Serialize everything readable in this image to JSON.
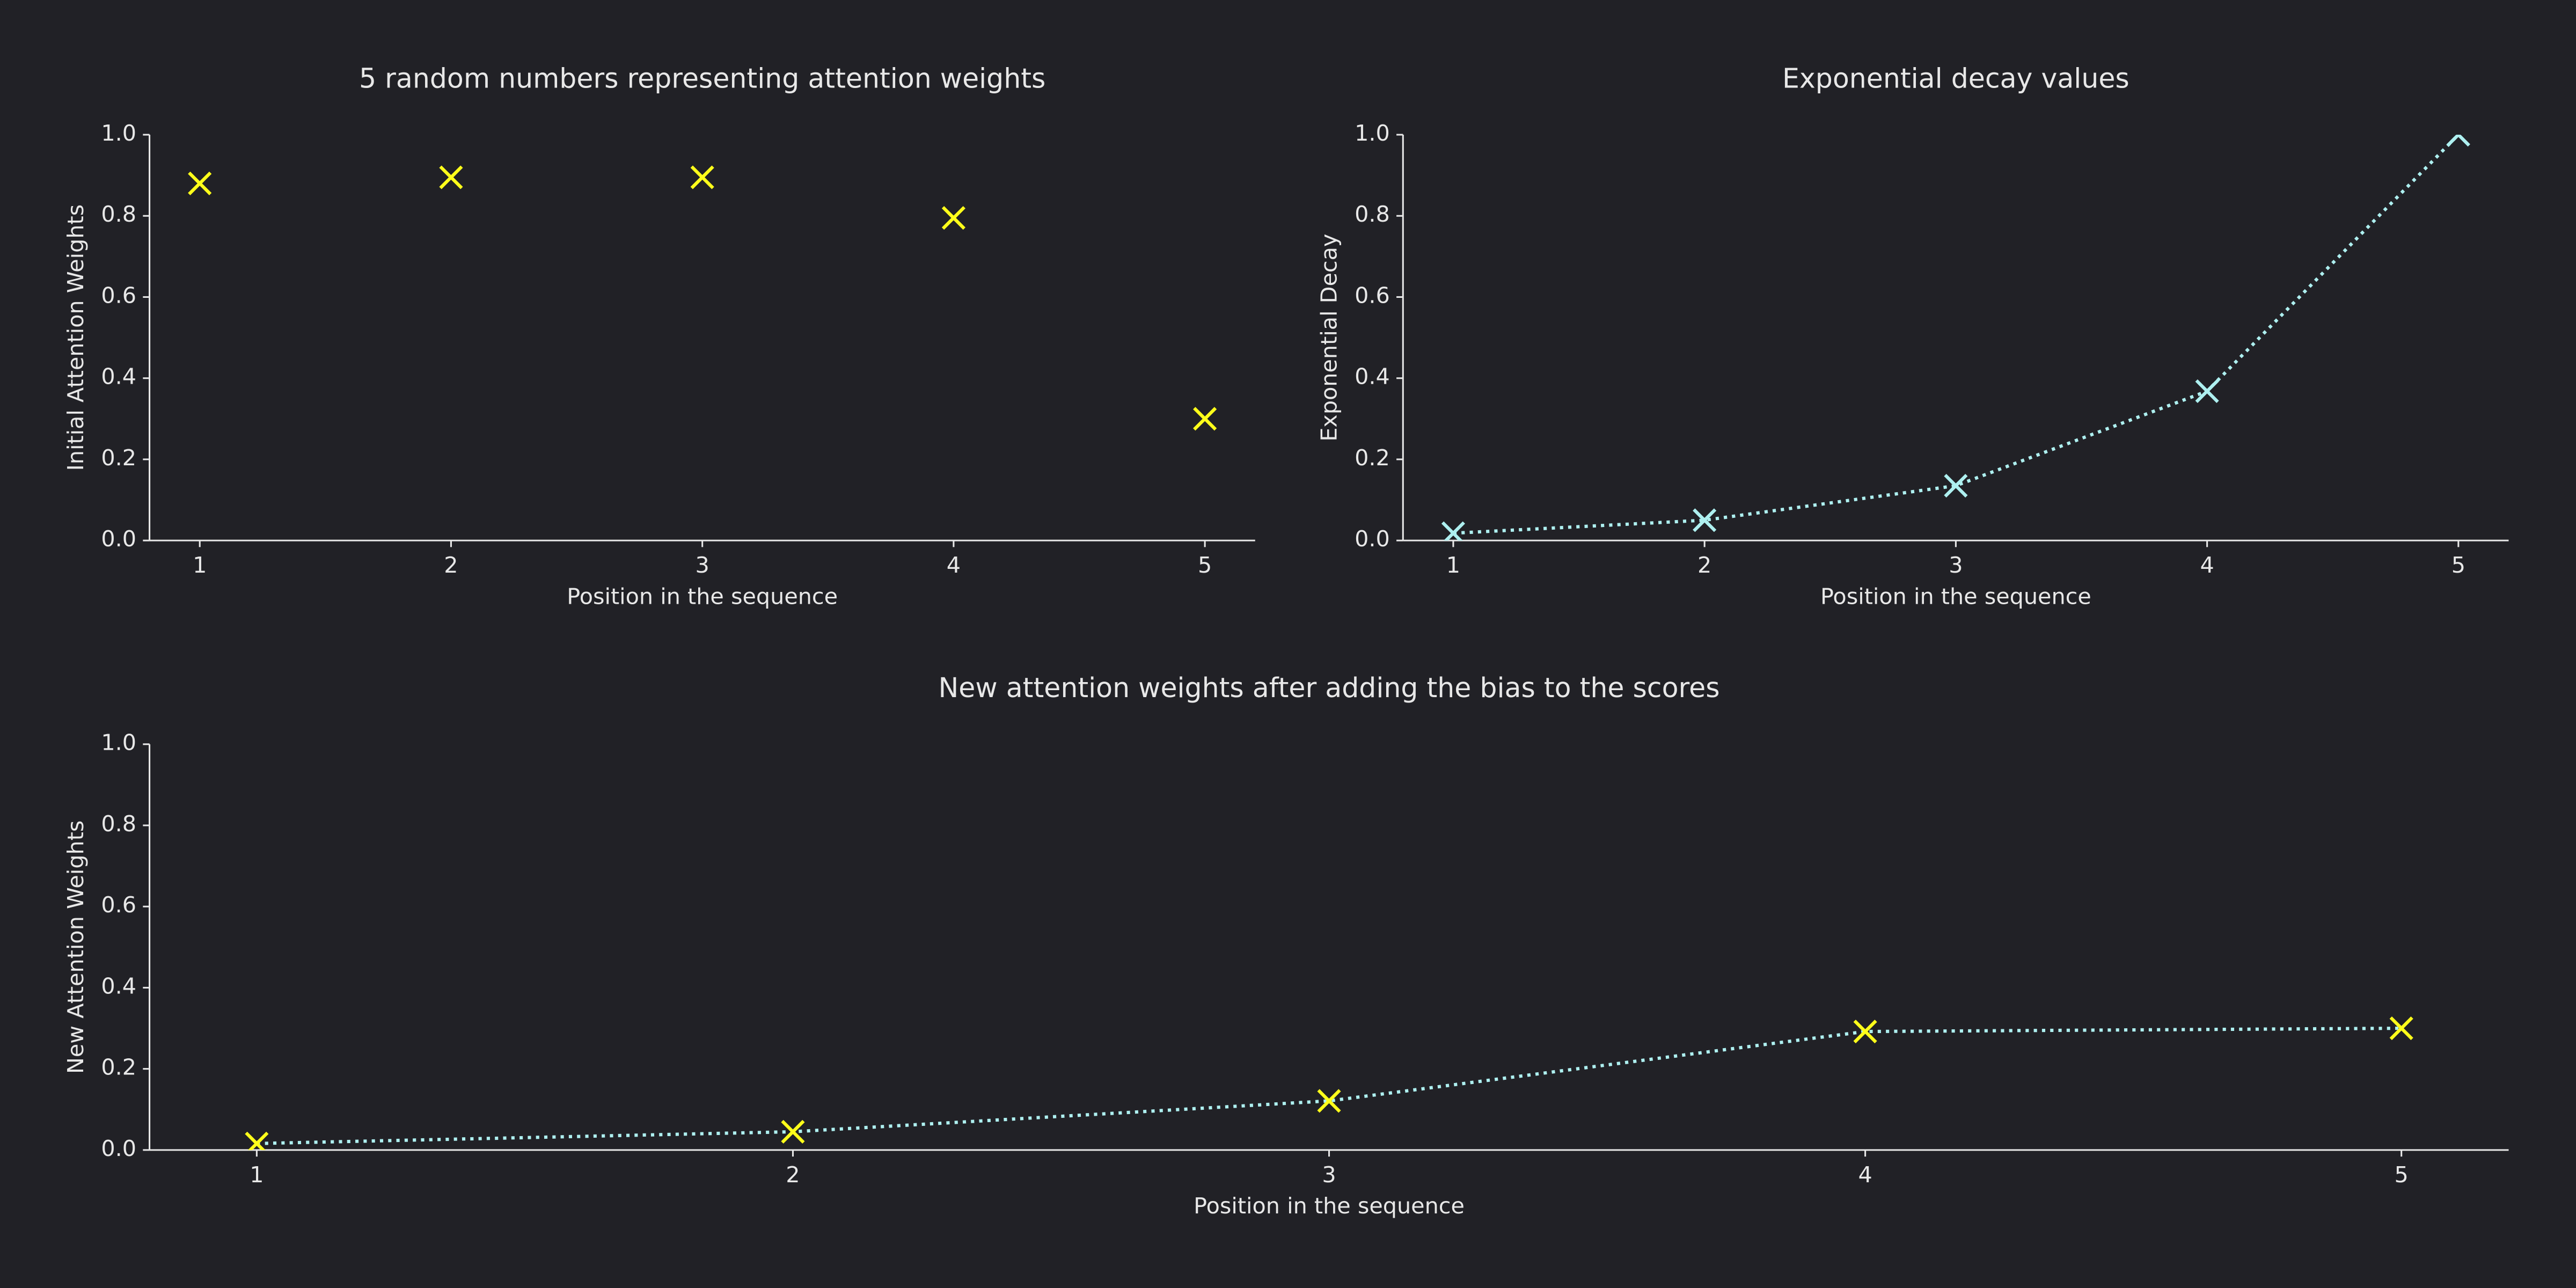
{
  "chart_data": [
    {
      "type": "scatter",
      "title": "5 random numbers representing attention weights",
      "xlabel": "Position in the sequence",
      "ylabel": "Initial Attention Weights",
      "x": [
        1,
        2,
        3,
        4,
        5
      ],
      "values": [
        0.88,
        0.895,
        0.895,
        0.795,
        0.3
      ],
      "color": "#ffff1a",
      "xlim": [
        0.8,
        5.2
      ],
      "xticks": [
        1,
        2,
        3,
        4,
        5
      ],
      "ylim": [
        0,
        1
      ],
      "yticks": [
        {
          "value": 0,
          "label": "0.0"
        },
        {
          "value": 0.2,
          "label": "0.2"
        },
        {
          "value": 0.4,
          "label": "0.4"
        },
        {
          "value": 0.6,
          "label": "0.6"
        },
        {
          "value": 0.8,
          "label": "0.8"
        },
        {
          "value": 1,
          "label": "1.0"
        }
      ]
    },
    {
      "type": "line",
      "title": "Exponential decay values",
      "xlabel": "Position in the sequence",
      "ylabel": "Exponential Decay",
      "x": [
        1,
        2,
        3,
        4,
        5
      ],
      "values": [
        0.018,
        0.05,
        0.135,
        0.368,
        1.0
      ],
      "color": "#aef0f0",
      "line_color": "#aef0f0",
      "xlim": [
        0.8,
        5.2
      ],
      "xticks": [
        1,
        2,
        3,
        4,
        5
      ],
      "ylim": [
        0,
        1
      ],
      "yticks": [
        {
          "value": 0,
          "label": "0.0"
        },
        {
          "value": 0.2,
          "label": "0.2"
        },
        {
          "value": 0.4,
          "label": "0.4"
        },
        {
          "value": 0.6,
          "label": "0.6"
        },
        {
          "value": 0.8,
          "label": "0.8"
        },
        {
          "value": 1,
          "label": "1.0"
        }
      ]
    },
    {
      "type": "line",
      "title": "New attention weights after adding the bias to the scores",
      "xlabel": "Position in the sequence",
      "ylabel": "New Attention Weights",
      "x": [
        1,
        2,
        3,
        4,
        5
      ],
      "values": [
        0.016,
        0.045,
        0.121,
        0.292,
        0.3
      ],
      "color": "#ffff1a",
      "line_color": "#aef0f0",
      "xlim": [
        0.8,
        5.2
      ],
      "xticks": [
        1,
        2,
        3,
        4,
        5
      ],
      "ylim": [
        0,
        1
      ],
      "yticks": [
        {
          "value": 0,
          "label": "0.0"
        },
        {
          "value": 0.2,
          "label": "0.2"
        },
        {
          "value": 0.4,
          "label": "0.4"
        },
        {
          "value": 0.6,
          "label": "0.6"
        },
        {
          "value": 0.8,
          "label": "0.8"
        },
        {
          "value": 1,
          "label": "1.0"
        }
      ]
    }
  ]
}
